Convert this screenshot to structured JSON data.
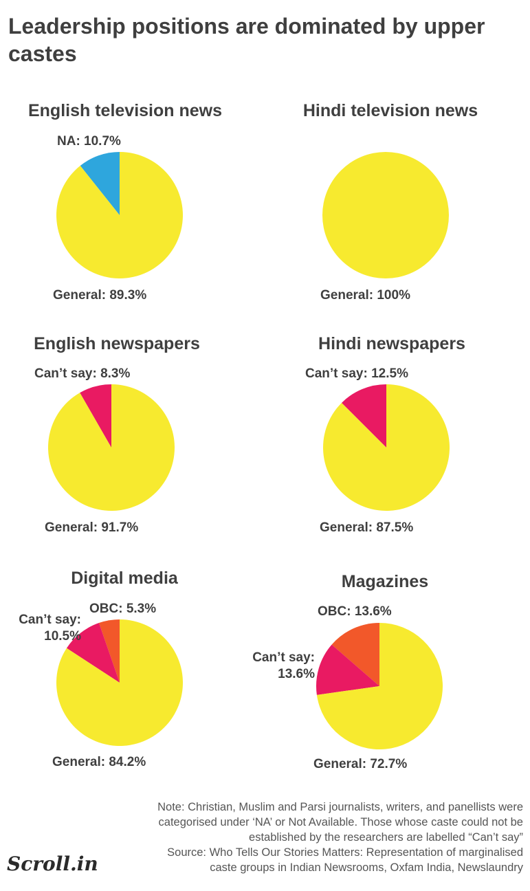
{
  "headline": "Leadership positions are dominated by upper castes",
  "colors": {
    "General": "#f7ea2f",
    "NA": "#2ea6dd",
    "Can’t say": "#e91a62",
    "OBC": "#f2582a"
  },
  "chart_data": [
    {
      "type": "pie",
      "title": "English television news",
      "slices": [
        {
          "name": "NA",
          "value": 10.7,
          "label": "NA: 10.7%"
        },
        {
          "name": "General",
          "value": 89.3,
          "label": "General: 89.3%"
        }
      ]
    },
    {
      "type": "pie",
      "title": "Hindi television news",
      "slices": [
        {
          "name": "General",
          "value": 100,
          "label": "General: 100%"
        }
      ]
    },
    {
      "type": "pie",
      "title": "English newspapers",
      "slices": [
        {
          "name": "Can’t say",
          "value": 8.3,
          "label": "Can’t say: 8.3%"
        },
        {
          "name": "General",
          "value": 91.7,
          "label": "General: 91.7%"
        }
      ]
    },
    {
      "type": "pie",
      "title": "Hindi newspapers",
      "slices": [
        {
          "name": "Can’t say",
          "value": 12.5,
          "label": "Can’t say: 12.5%"
        },
        {
          "name": "General",
          "value": 87.5,
          "label": "General: 87.5%"
        }
      ]
    },
    {
      "type": "pie",
      "title": "Digital media",
      "slices": [
        {
          "name": "OBC",
          "value": 5.3,
          "label": "OBC: 5.3%"
        },
        {
          "name": "Can’t say",
          "value": 10.5,
          "label": "Can’t say:\n10.5%"
        },
        {
          "name": "General",
          "value": 84.2,
          "label": "General: 84.2%"
        }
      ]
    },
    {
      "type": "pie",
      "title": "Magazines",
      "slices": [
        {
          "name": "OBC",
          "value": 13.6,
          "label": "OBC: 13.6%"
        },
        {
          "name": "Can’t say",
          "value": 13.6,
          "label": "Can’t say:\n13.6%"
        },
        {
          "name": "General",
          "value": 72.7,
          "label": "General: 72.7%"
        }
      ]
    }
  ],
  "notes": [
    "Note: Christian, Muslim and Parsi journalists, writers, and panellists were",
    "categorised under ‘NA’ or Not Available. Those whose caste could not be",
    "established by the researchers are labelled “Can’t say”",
    "Source: Who Tells Our Stories Matters: Representation of marginalised",
    "caste groups in Indian Newsrooms, Oxfam India, Newslaundry"
  ],
  "logo": "Scroll.in"
}
